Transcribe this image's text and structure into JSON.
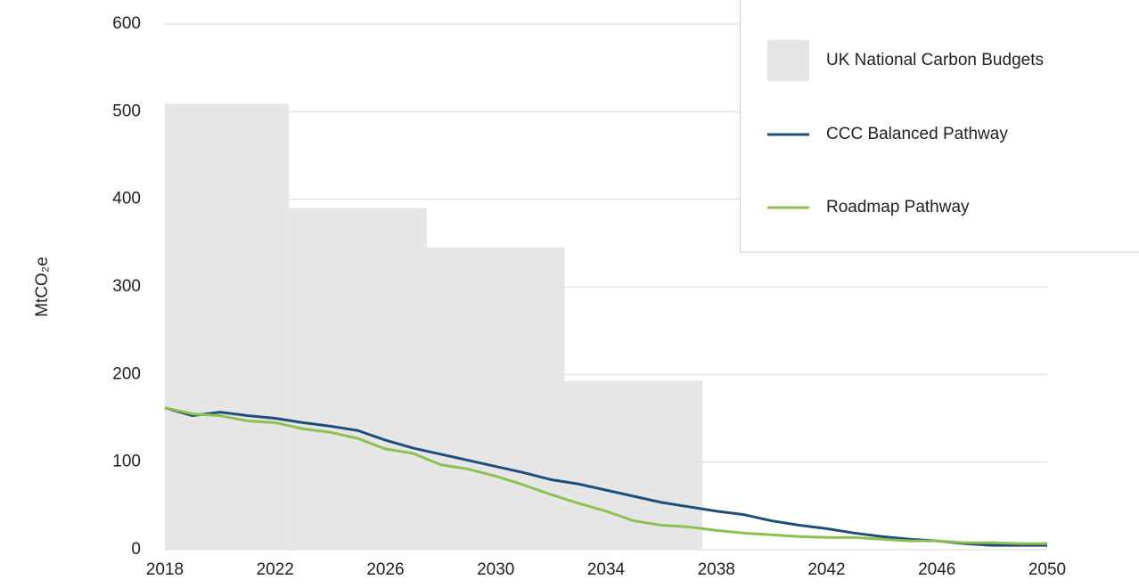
{
  "chart_data": {
    "type": "line",
    "y_label": "MtCO₂e",
    "x": [
      2018,
      2019,
      2020,
      2021,
      2022,
      2023,
      2024,
      2025,
      2026,
      2027,
      2028,
      2029,
      2030,
      2031,
      2032,
      2033,
      2034,
      2035,
      2036,
      2037,
      2038,
      2039,
      2040,
      2041,
      2042,
      2043,
      2044,
      2045,
      2046,
      2047,
      2048,
      2049,
      2050
    ],
    "budgets": {
      "name": "UK National Carbon Budgets",
      "color": "#e6e6e6",
      "bins": [
        2018,
        2022.5,
        2027.5,
        2032.5,
        2037.5
      ],
      "values": [
        509,
        390,
        345,
        193
      ]
    },
    "series": [
      {
        "name": "CCC Balanced Pathway",
        "color": "#1f4e79",
        "values": [
          162,
          153,
          157,
          153,
          150,
          145,
          141,
          136,
          125,
          116,
          109,
          102,
          95,
          88,
          80,
          75,
          68,
          61,
          54,
          49,
          44,
          40,
          33,
          28,
          24,
          19,
          15,
          12,
          10,
          7,
          5,
          5,
          5
        ]
      },
      {
        "name": "Roadmap Pathway",
        "color": "#8cc152",
        "values": [
          162,
          155,
          153,
          147,
          145,
          138,
          134,
          127,
          115,
          110,
          97,
          92,
          84,
          74,
          63,
          53,
          44,
          33,
          28,
          26,
          22,
          19,
          17,
          15,
          14,
          14,
          12,
          10,
          10,
          8,
          8,
          7,
          7
        ]
      }
    ],
    "xlim": [
      2018,
      2050
    ],
    "xticks": [
      2018,
      2022,
      2026,
      2030,
      2034,
      2038,
      2042,
      2046,
      2050
    ],
    "ylim": [
      0,
      600
    ],
    "yticks": [
      0,
      100,
      200,
      300,
      400,
      500,
      600
    ],
    "grid": true
  }
}
